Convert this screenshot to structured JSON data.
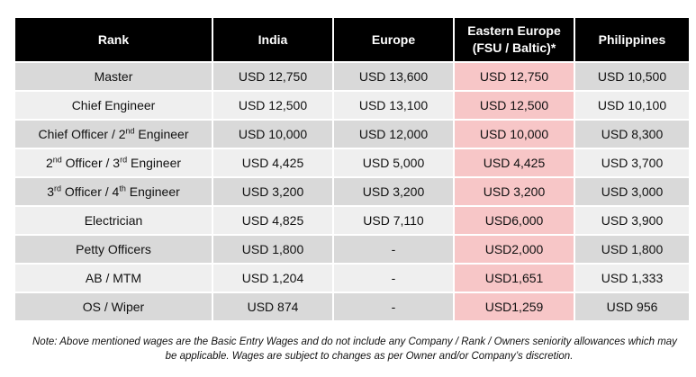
{
  "table": {
    "headers": [
      {
        "line1": "Rank",
        "line2": ""
      },
      {
        "line1": "India",
        "line2": ""
      },
      {
        "line1": "Europe",
        "line2": ""
      },
      {
        "line1": "Eastern Europe",
        "line2": "(FSU / Baltic)*"
      },
      {
        "line1": "Philippines",
        "line2": ""
      }
    ],
    "rows": [
      {
        "rank": {
          "a": "Master",
          "s1": "",
          "b": "",
          "s2": "",
          "c": ""
        },
        "india": "USD 12,750",
        "europe": "USD 13,600",
        "eastern_europe": "USD 12,750",
        "philippines": "USD 10,500"
      },
      {
        "rank": {
          "a": "Chief Engineer",
          "s1": "",
          "b": "",
          "s2": "",
          "c": ""
        },
        "india": "USD 12,500",
        "europe": "USD 13,100",
        "eastern_europe": "USD 12,500",
        "philippines": "USD 10,100"
      },
      {
        "rank": {
          "a": "Chief Officer / 2",
          "s1": "nd",
          "b": " Engineer",
          "s2": "",
          "c": ""
        },
        "india": "USD 10,000",
        "europe": "USD 12,000",
        "eastern_europe": "USD 10,000",
        "philippines": "USD 8,300"
      },
      {
        "rank": {
          "a": "2",
          "s1": "nd",
          "b": " Officer / 3",
          "s2": "rd",
          "c": " Engineer"
        },
        "india": "USD 4,425",
        "europe": "USD 5,000",
        "eastern_europe": "USD 4,425",
        "philippines": "USD 3,700"
      },
      {
        "rank": {
          "a": "3",
          "s1": "rd",
          "b": " Officer / 4",
          "s2": "th",
          "c": " Engineer"
        },
        "india": "USD 3,200",
        "europe": "USD 3,200",
        "eastern_europe": "USD 3,200",
        "philippines": "USD 3,000"
      },
      {
        "rank": {
          "a": "Electrician",
          "s1": "",
          "b": "",
          "s2": "",
          "c": ""
        },
        "india": "USD 4,825",
        "europe": "USD 7,110",
        "eastern_europe": "USD6,000",
        "philippines": "USD 3,900"
      },
      {
        "rank": {
          "a": "Petty Officers",
          "s1": "",
          "b": "",
          "s2": "",
          "c": ""
        },
        "india": "USD 1,800",
        "europe": "-",
        "eastern_europe": "USD2,000",
        "philippines": "USD 1,800"
      },
      {
        "rank": {
          "a": "AB / MTM",
          "s1": "",
          "b": "",
          "s2": "",
          "c": ""
        },
        "india": "USD 1,204",
        "europe": "-",
        "eastern_europe": "USD1,651",
        "philippines": "USD 1,333"
      },
      {
        "rank": {
          "a": "OS / Wiper",
          "s1": "",
          "b": "",
          "s2": "",
          "c": ""
        },
        "india": "USD 874",
        "europe": "-",
        "eastern_europe": "USD1,259",
        "philippines": "USD 956"
      }
    ],
    "colors": {
      "header_bg": "#000000",
      "header_text": "#ffffff",
      "row_dark": "#d9d9d9",
      "row_light": "#efefef",
      "highlight": "#f7c6c7"
    }
  },
  "note": {
    "line1": "Note: Above mentioned wages are the Basic Entry Wages and do not include any Company / Rank / Owners seniority allowances which may",
    "line2": "be applicable.  Wages are subject to changes as per Owner and/or Company’s discretion."
  }
}
